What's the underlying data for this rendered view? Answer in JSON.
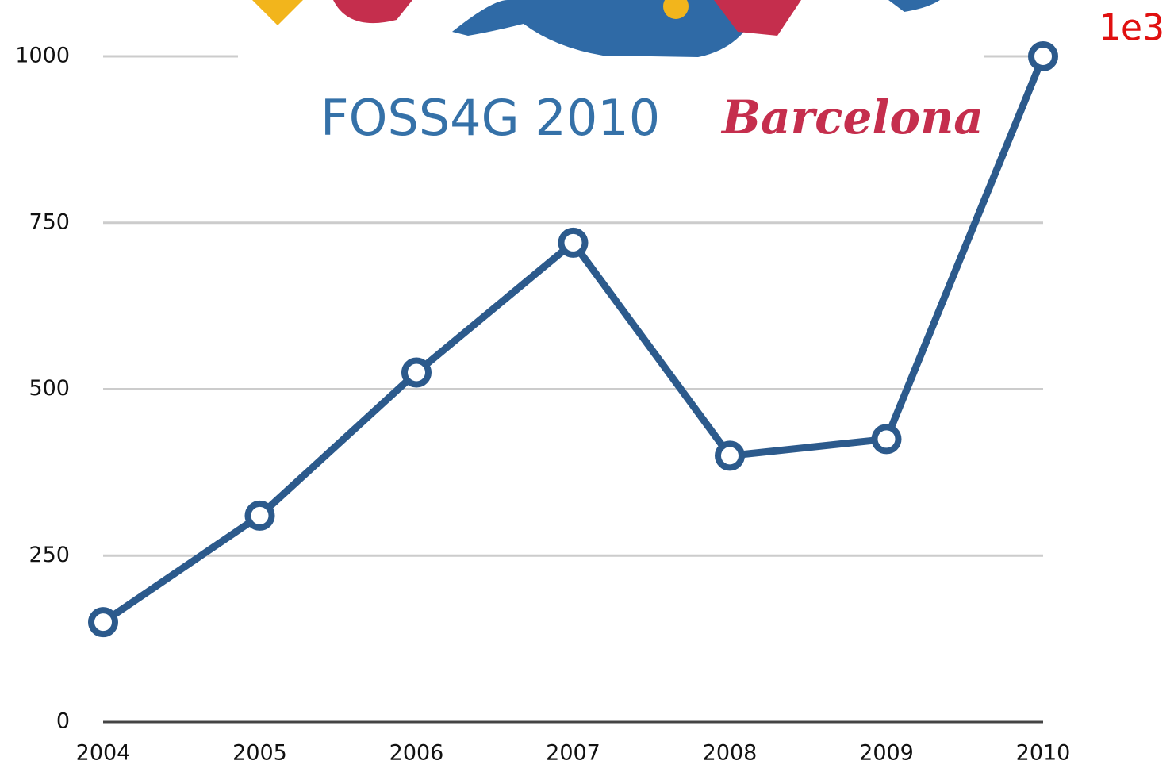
{
  "chart_data": {
    "type": "line",
    "logo_texts": [
      "FOSS4G 2010",
      "Barcelona"
    ],
    "annotation": "1e3",
    "x": [
      2004,
      2005,
      2006,
      2007,
      2008,
      2009,
      2010
    ],
    "series": [
      {
        "color": "#2c5a8c",
        "values": [
          150,
          310,
          525,
          720,
          400,
          425,
          1000
        ]
      }
    ],
    "xlim": [
      2004,
      2010
    ],
    "xticks": [
      2004,
      2005,
      2006,
      2007,
      2008,
      2009,
      2010
    ],
    "ylim": [
      0,
      1000
    ],
    "yticks": [
      0,
      250,
      500,
      750,
      1000
    ],
    "grid": true
  }
}
